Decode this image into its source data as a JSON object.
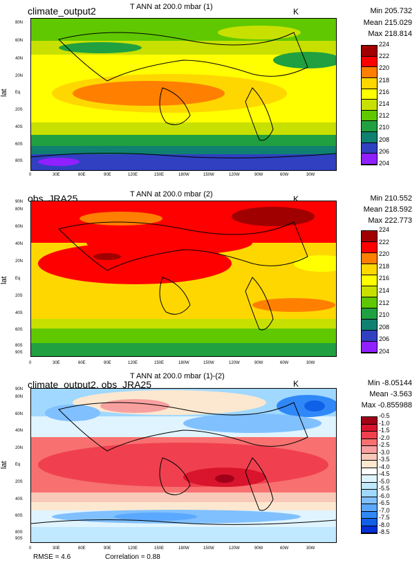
{
  "panels": [
    {
      "case_name": "climate_output2",
      "title": "T ANN at 200.0 mbar (1)",
      "units": "K",
      "min_label": "Min 205.732",
      "mean_label": "Mean 215.029",
      "max_label": "Max 218.814",
      "ylabel": "lat",
      "lat_ticks": [
        "80N",
        "60N",
        "40N",
        "20N",
        "Eq",
        "20S",
        "40S",
        "60S",
        "80S"
      ],
      "lon_ticks": [
        "0",
        "30E",
        "60E",
        "90E",
        "120E",
        "150E",
        "180W",
        "150W",
        "120W",
        "90W",
        "60W",
        "30W"
      ],
      "colorbar_labels": [
        "224",
        "222",
        "220",
        "218",
        "216",
        "214",
        "212",
        "210",
        "208",
        "206",
        "204"
      ],
      "colorbar_colors": [
        "#a00000",
        "#ff0000",
        "#ff7f00",
        "#ffd700",
        "#ffff00",
        "#c8e000",
        "#60c800",
        "#20a040",
        "#108070",
        "#3040c0",
        "#9020ff"
      ]
    },
    {
      "case_name": "obs_JRA25",
      "title": "T ANN at 200.0 mbar (2)",
      "units": "K",
      "min_label": "Min 210.552",
      "mean_label": "Mean 218.592",
      "max_label": "Max 222.773",
      "ylabel": "lat",
      "lat_ticks": [
        "90N",
        "80N",
        "60N",
        "40N",
        "20N",
        "Eq",
        "20S",
        "40S",
        "60S",
        "80S",
        "90S"
      ],
      "lon_ticks": [
        "0",
        "30E",
        "60E",
        "90E",
        "120E",
        "150E",
        "180W",
        "150W",
        "120W",
        "90W",
        "60W",
        "30W"
      ],
      "colorbar_labels": [
        "224",
        "222",
        "220",
        "218",
        "216",
        "214",
        "212",
        "210",
        "208",
        "206",
        "204"
      ],
      "colorbar_colors": [
        "#a00000",
        "#ff0000",
        "#ff7f00",
        "#ffd700",
        "#ffff00",
        "#c8e000",
        "#60c800",
        "#20a040",
        "#108070",
        "#3040c0",
        "#9020ff"
      ]
    },
    {
      "case_name": "climate_output2, obs_JRA25",
      "title": "T ANN at 200.0 mbar (1)-(2)",
      "units": "K",
      "min_label": "Min -8.05144",
      "mean_label": "Mean -3.563",
      "max_label": "Max -0.855988",
      "ylabel": "lat",
      "lat_ticks": [
        "90N",
        "80N",
        "60N",
        "40N",
        "20N",
        "Eq",
        "20S",
        "40S",
        "60S",
        "80S",
        "90S"
      ],
      "lon_ticks": [
        "0",
        "30E",
        "60E",
        "90E",
        "120E",
        "150E",
        "180W",
        "150W",
        "120W",
        "90W",
        "60W",
        "30W"
      ],
      "colorbar_labels": [
        "-0.5",
        "-1.0",
        "-1.5",
        "-2.0",
        "-2.5",
        "-3.0",
        "-3.5",
        "-4.0",
        "-4.5",
        "-5.0",
        "-5.5",
        "-6.0",
        "-6.5",
        "-7.0",
        "-7.5",
        "-8.0",
        "-8.5"
      ],
      "colorbar_colors": [
        "#a00018",
        "#d8152c",
        "#f04050",
        "#f87070",
        "#f8a0a0",
        "#f8c8b8",
        "#fce8d0",
        "#ffffff",
        "#e0f4ff",
        "#c0e8ff",
        "#a0d8ff",
        "#80c0ff",
        "#5aa8ff",
        "#3088f8",
        "#1060e8",
        "#0030d8"
      ]
    }
  ],
  "footer": {
    "rmse": "RMSE = 4.6",
    "correlation": "Correlation = 0.88"
  }
}
